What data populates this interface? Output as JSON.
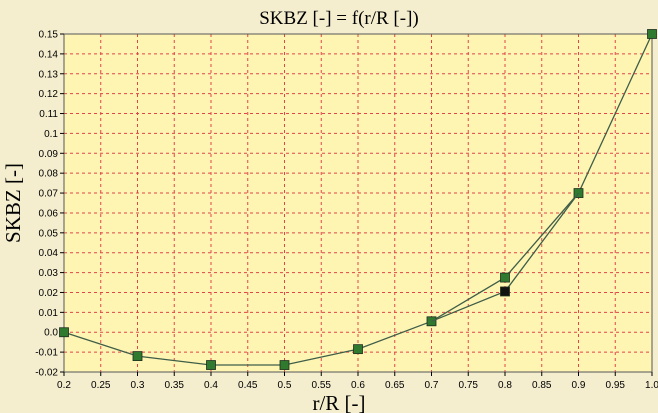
{
  "chart_data": {
    "type": "line",
    "title": "SKBZ [-] = f(r/R [-])",
    "xlabel": "r/R [-]",
    "ylabel": "SKBZ [-]",
    "xlim": [
      0.2,
      1.0
    ],
    "ylim": [
      -0.02,
      0.15
    ],
    "x_ticks": [
      "0.2",
      "0.25",
      "0.3",
      "0.35",
      "0.4",
      "0.45",
      "0.5",
      "0.55",
      "0.6",
      "0.65",
      "0.7",
      "0.75",
      "0.8",
      "0.85",
      "0.9",
      "0.95",
      "1.0"
    ],
    "y_ticks": [
      "0.15",
      "0.14",
      "0.13",
      "0.12",
      "0.11",
      "0.1",
      "0.09",
      "0.08",
      "0.07",
      "0.06",
      "0.05",
      "0.04",
      "0.03",
      "0.02",
      "0.01",
      "0.0",
      "-0.01",
      "-0.02"
    ],
    "grid": true,
    "colors": {
      "plot_background": "#fff5b3",
      "grid": "#e0454a",
      "series_line": "#3f5e48",
      "marker_green": "#2f7a2f",
      "marker_black": "#111111"
    },
    "series": [
      {
        "marker": "green-square",
        "x": [
          0.2,
          0.3,
          0.4,
          0.5,
          0.6,
          0.7,
          0.8,
          0.9,
          1.0
        ],
        "y": [
          0.0,
          -0.012,
          -0.0165,
          -0.0165,
          -0.0085,
          0.0055,
          0.0275,
          0.07,
          0.15
        ]
      },
      {
        "marker": "black-square",
        "x": [
          0.7,
          0.8,
          0.9
        ],
        "y": [
          0.0055,
          0.0205,
          0.07
        ]
      }
    ]
  }
}
